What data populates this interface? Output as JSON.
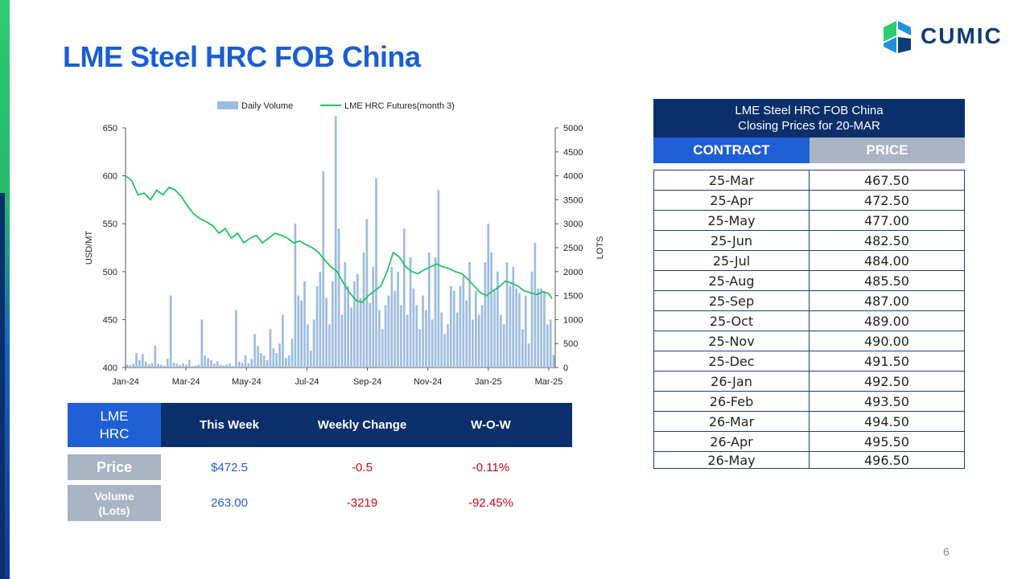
{
  "page": {
    "title": "LME Steel HRC FOB China",
    "page_number": "6"
  },
  "logo": {
    "text": "CUMIC",
    "color_primary": "#0d3c7a",
    "color_green": "#2ecc71",
    "color_blue": "#1f8fe0"
  },
  "summary": {
    "label": [
      "LME",
      "HRC"
    ],
    "headers": [
      "This Week",
      "Weekly Change",
      "W-O-W"
    ],
    "rows": [
      {
        "label": [
          "Price"
        ],
        "this_week": "$472.5",
        "weekly_change": "-0.5",
        "wow": "-0.11%"
      },
      {
        "label": [
          "Volume",
          "(Lots)"
        ],
        "this_week": "263.00",
        "weekly_change": "-3219",
        "wow": "-92.45%"
      }
    ]
  },
  "closing_table": {
    "title_line1": "LME Steel HRC FOB China",
    "title_line2": "Closing Prices for 20-MAR",
    "col_contract": "CONTRACT",
    "col_price": "PRICE",
    "rows": [
      [
        "25-Mar",
        "467.50"
      ],
      [
        "25-Apr",
        "472.50"
      ],
      [
        "25-May",
        "477.00"
      ],
      [
        "25-Jun",
        "482.50"
      ],
      [
        "25-Jul",
        "484.00"
      ],
      [
        "25-Aug",
        "485.50"
      ],
      [
        "25-Sep",
        "487.00"
      ],
      [
        "25-Oct",
        "489.00"
      ],
      [
        "25-Nov",
        "490.00"
      ],
      [
        "25-Dec",
        "491.50"
      ],
      [
        "26-Jan",
        "492.50"
      ],
      [
        "26-Feb",
        "493.50"
      ],
      [
        "26-Mar",
        "494.50"
      ],
      [
        "26-Apr",
        "495.50"
      ],
      [
        "26-May",
        "496.50"
      ]
    ]
  },
  "chart_data": {
    "type": "line",
    "legend": [
      "Daily Volume",
      "LME HRC Futures(month 3)"
    ],
    "legend_position": "top-center",
    "ylabel_left": "USD/MT",
    "ylabel_right": "LOTS",
    "y_left_range": [
      400,
      650
    ],
    "y_left_ticks": [
      "400",
      "450",
      "500",
      "550",
      "600",
      "650"
    ],
    "y_right_range": [
      0,
      5000
    ],
    "y_right_ticks": [
      "0",
      "500",
      "1000",
      "1500",
      "2000",
      "2500",
      "3000",
      "3500",
      "4000",
      "4500",
      "5000"
    ],
    "x_tick_labels": [
      "Jan-24",
      "Mar-24",
      "May-24",
      "Jul-24",
      "Sep-24",
      "Nov-24",
      "Jan-25",
      "Mar-25"
    ],
    "colors": {
      "volume": "#9dbde0",
      "futures": "#22c55e"
    },
    "futures_series": {
      "name": "LME HRC Futures(month 3)",
      "points": [
        [
          0,
          600
        ],
        [
          2,
          595
        ],
        [
          4,
          580
        ],
        [
          6,
          582
        ],
        [
          8,
          575
        ],
        [
          10,
          585
        ],
        [
          12,
          580
        ],
        [
          14,
          588
        ],
        [
          16,
          585
        ],
        [
          18,
          578
        ],
        [
          20,
          568
        ],
        [
          22,
          560
        ],
        [
          24,
          555
        ],
        [
          26,
          552
        ],
        [
          28,
          548
        ],
        [
          30,
          540
        ],
        [
          32,
          545
        ],
        [
          34,
          535
        ],
        [
          36,
          540
        ],
        [
          38,
          530
        ],
        [
          40,
          535
        ],
        [
          42,
          538
        ],
        [
          44,
          530
        ],
        [
          46,
          535
        ],
        [
          48,
          540
        ],
        [
          50,
          538
        ],
        [
          52,
          535
        ],
        [
          54,
          530
        ],
        [
          56,
          532
        ],
        [
          58,
          528
        ],
        [
          60,
          525
        ],
        [
          62,
          520
        ],
        [
          64,
          512
        ],
        [
          66,
          505
        ],
        [
          68,
          500
        ],
        [
          70,
          488
        ],
        [
          72,
          478
        ],
        [
          74,
          470
        ],
        [
          76,
          468
        ],
        [
          78,
          475
        ],
        [
          80,
          480
        ],
        [
          82,
          485
        ],
        [
          84,
          500
        ],
        [
          86,
          520
        ],
        [
          88,
          515
        ],
        [
          90,
          505
        ],
        [
          92,
          500
        ],
        [
          94,
          498
        ],
        [
          96,
          502
        ],
        [
          98,
          505
        ],
        [
          100,
          508
        ],
        [
          102,
          505
        ],
        [
          104,
          503
        ],
        [
          106,
          500
        ],
        [
          108,
          498
        ],
        [
          110,
          492
        ],
        [
          112,
          485
        ],
        [
          114,
          478
        ],
        [
          116,
          475
        ],
        [
          118,
          480
        ],
        [
          120,
          484
        ],
        [
          122,
          490
        ],
        [
          124,
          488
        ],
        [
          126,
          485
        ],
        [
          128,
          480
        ],
        [
          130,
          478
        ],
        [
          132,
          476
        ],
        [
          134,
          479
        ],
        [
          136,
          477
        ],
        [
          137,
          472
        ]
      ]
    },
    "volume_series": {
      "name": "Daily Volume",
      "values": [
        60,
        50,
        80,
        300,
        150,
        280,
        120,
        70,
        90,
        450,
        80,
        60,
        40,
        180,
        1500,
        100,
        80,
        50,
        90,
        60,
        160,
        30,
        40,
        60,
        1000,
        250,
        200,
        150,
        80,
        130,
        50,
        40,
        60,
        80,
        30,
        1200,
        120,
        100,
        250,
        90,
        180,
        700,
        450,
        300,
        250,
        150,
        800,
        400,
        300,
        500,
        1100,
        200,
        250,
        600,
        3000,
        1500,
        1400,
        1800,
        900,
        350,
        1000,
        1700,
        2000,
        4100,
        1450,
        900,
        1800,
        5250,
        2900,
        1100,
        2200,
        1700,
        1250,
        1800,
        1950,
        1450,
        2400,
        3100,
        1350,
        2100,
        3950,
        1200,
        800,
        1300,
        1500,
        2100,
        1600,
        2000,
        1300,
        2900,
        1100,
        2300,
        1650,
        1300,
        800,
        1500,
        1200,
        2400,
        1000,
        2300,
        3700,
        1150,
        700,
        900,
        1700,
        1600,
        1150,
        1700,
        1900,
        1400,
        2200,
        1000,
        1600,
        1100,
        1300,
        2200,
        3000,
        2400,
        1600,
        2000,
        1100,
        900,
        2200,
        1700,
        2100,
        1650,
        1550,
        800,
        1500,
        500,
        2000,
        2600,
        1650,
        1650,
        1600,
        900,
        1000,
        263
      ]
    }
  }
}
